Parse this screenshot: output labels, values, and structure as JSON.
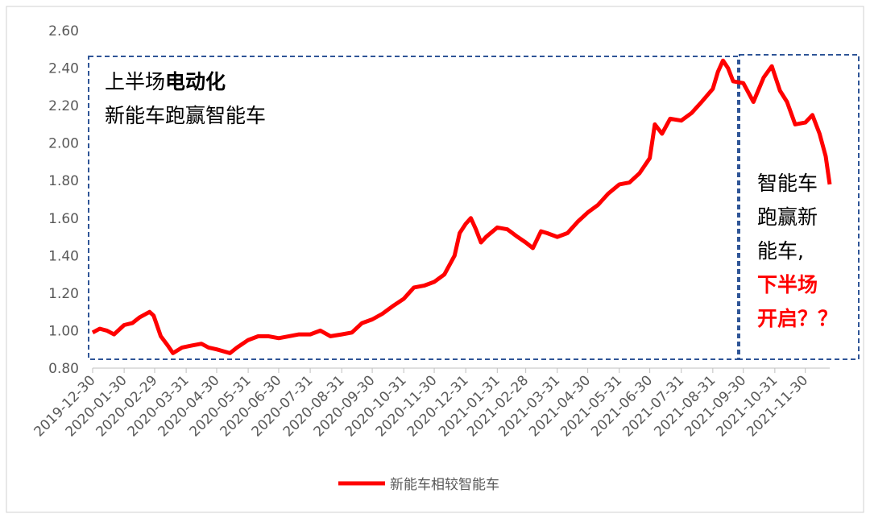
{
  "chart_data": {
    "type": "line",
    "x": [
      "2019-12-30",
      "2020-01-06",
      "2020-01-13",
      "2020-01-20",
      "2020-01-30",
      "2020-02-07",
      "2020-02-14",
      "2020-02-24",
      "2020-02-28",
      "2020-03-06",
      "2020-03-13",
      "2020-03-18",
      "2020-03-27",
      "2020-04-05",
      "2020-04-15",
      "2020-04-22",
      "2020-04-30",
      "2020-05-13",
      "2020-05-20",
      "2020-05-31",
      "2020-06-10",
      "2020-06-20",
      "2020-06-30",
      "2020-07-10",
      "2020-07-20",
      "2020-07-31",
      "2020-08-10",
      "2020-08-20",
      "2020-08-31",
      "2020-09-10",
      "2020-09-20",
      "2020-09-30",
      "2020-10-10",
      "2020-10-20",
      "2020-10-31",
      "2020-11-10",
      "2020-11-20",
      "2020-11-30",
      "2020-12-10",
      "2020-12-20",
      "2020-12-25",
      "2020-12-31",
      "2021-01-05",
      "2021-01-10",
      "2021-01-15",
      "2021-01-20",
      "2021-01-31",
      "2021-02-10",
      "2021-02-20",
      "2021-02-28",
      "2021-03-07",
      "2021-03-15",
      "2021-03-21",
      "2021-03-31",
      "2021-04-10",
      "2021-04-20",
      "2021-04-30",
      "2021-05-10",
      "2021-05-20",
      "2021-05-31",
      "2021-06-10",
      "2021-06-20",
      "2021-06-30",
      "2021-07-05",
      "2021-07-12",
      "2021-07-20",
      "2021-07-31",
      "2021-08-10",
      "2021-08-20",
      "2021-08-31",
      "2021-09-05",
      "2021-09-10",
      "2021-09-15",
      "2021-09-20",
      "2021-09-30",
      "2021-10-10",
      "2021-10-20",
      "2021-10-28",
      "2021-11-05",
      "2021-11-12",
      "2021-11-20",
      "2021-11-30",
      "2021-12-07",
      "2021-12-14",
      "2021-12-20",
      "2021-12-24"
    ],
    "series": [
      {
        "name": "新能车相较智能车",
        "color": "#ff0000",
        "values": [
          0.99,
          1.01,
          1.0,
          0.98,
          1.03,
          1.04,
          1.07,
          1.1,
          1.08,
          0.97,
          0.92,
          0.88,
          0.91,
          0.92,
          0.93,
          0.91,
          0.9,
          0.88,
          0.91,
          0.95,
          0.97,
          0.97,
          0.96,
          0.97,
          0.98,
          0.98,
          1.0,
          0.97,
          0.98,
          0.99,
          1.04,
          1.06,
          1.09,
          1.13,
          1.17,
          1.23,
          1.24,
          1.26,
          1.3,
          1.4,
          1.52,
          1.57,
          1.6,
          1.54,
          1.47,
          1.5,
          1.55,
          1.54,
          1.5,
          1.47,
          1.44,
          1.53,
          1.52,
          1.5,
          1.52,
          1.58,
          1.63,
          1.67,
          1.73,
          1.78,
          1.79,
          1.84,
          1.92,
          2.1,
          2.05,
          2.13,
          2.12,
          2.16,
          2.22,
          2.29,
          2.38,
          2.44,
          2.4,
          2.33,
          2.32,
          2.22,
          2.35,
          2.41,
          2.28,
          2.22,
          2.1,
          2.11,
          2.15,
          2.05,
          1.93,
          1.78
        ]
      }
    ],
    "xlim": [
      "2019-12-30",
      "2021-12-24"
    ],
    "xticks": [
      "2019-12-30",
      "2020-01-30",
      "2020-02-29",
      "2020-03-31",
      "2020-04-30",
      "2020-05-31",
      "2020-06-30",
      "2020-07-31",
      "2020-08-31",
      "2020-09-30",
      "2020-10-31",
      "2020-11-30",
      "2020-12-31",
      "2021-01-31",
      "2021-02-28",
      "2021-03-31",
      "2021-04-30",
      "2021-05-31",
      "2021-06-30",
      "2021-07-31",
      "2021-08-31",
      "2021-09-30",
      "2021-10-31",
      "2021-11-30"
    ],
    "ylim": [
      0.8,
      2.6
    ],
    "yticks": [
      {
        "value": 0.8,
        "label": "0.80"
      },
      {
        "value": 1,
        "label": "1.00"
      },
      {
        "value": 1.2,
        "label": "1.20"
      },
      {
        "value": 1.4,
        "label": "1.40"
      },
      {
        "value": 1.6,
        "label": "1.60"
      },
      {
        "value": 1.8,
        "label": "1.80"
      },
      {
        "value": 2,
        "label": "2.00"
      },
      {
        "value": 2.2,
        "label": "2.20"
      },
      {
        "value": 2.4,
        "label": "2.40"
      },
      {
        "value": 2.6,
        "label": "2.60"
      }
    ],
    "legend": "bottom",
    "annotations": [
      {
        "lines": [
          [
            {
              "text": "上半场"
            },
            {
              "text": "电动化",
              "bold": true
            }
          ],
          [
            {
              "text": "新能车跑赢智能车"
            }
          ]
        ]
      },
      {
        "lines": [
          [
            {
              "text": "智能车"
            }
          ],
          [
            {
              "text": "跑赢新"
            }
          ],
          [
            {
              "text": "能车,"
            }
          ],
          [
            {
              "text": "下半场",
              "bold": true,
              "color": "#ff0000"
            }
          ],
          [
            {
              "text": "开启？？",
              "bold": true,
              "color": "#ff0000"
            }
          ]
        ]
      }
    ]
  }
}
